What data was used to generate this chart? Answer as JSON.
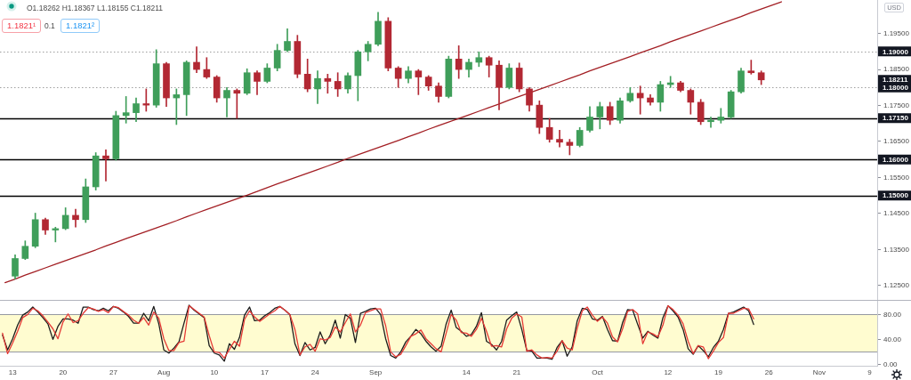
{
  "chart_data": [
    {
      "type": "candlestick",
      "categories": [
        null,
        null,
        null,
        null,
        null,
        null,
        null,
        null,
        null,
        null,
        null,
        null,
        null,
        null,
        null,
        null,
        null,
        null,
        null,
        null,
        null,
        null,
        null,
        null,
        null,
        null,
        null,
        null,
        null,
        null,
        null,
        null,
        null,
        null,
        null,
        null,
        null,
        null,
        null,
        null,
        null,
        null,
        null,
        null,
        null,
        null,
        null,
        null,
        null,
        null,
        null,
        null,
        null,
        null,
        null,
        null,
        null,
        null,
        null,
        null,
        null,
        null,
        null,
        null,
        null,
        null,
        null,
        null,
        null,
        null,
        null,
        null,
        null,
        null,
        null,
        null,
        null,
        null,
        null,
        null,
        null,
        null,
        null,
        null,
        null,
        null,
        null
      ],
      "ohlc": [
        null,
        [
          1.1276,
          1.1335,
          1.1268,
          1.1325
        ],
        [
          1.1325,
          1.1374,
          1.1322,
          1.1359
        ],
        [
          1.1359,
          1.1451,
          1.1355,
          1.1433
        ],
        [
          1.1433,
          1.1437,
          1.1392,
          1.1404
        ],
        [
          1.1404,
          1.1412,
          1.1371,
          1.1408
        ],
        [
          1.1408,
          1.1466,
          1.1405,
          1.1445
        ],
        [
          1.1445,
          1.1462,
          1.1412,
          1.1433
        ],
        [
          1.1433,
          1.1546,
          1.1425,
          1.1524
        ],
        [
          1.1524,
          1.1619,
          1.1515,
          1.161
        ],
        [
          1.161,
          1.1627,
          1.154,
          1.1602
        ],
        [
          1.1602,
          1.1734,
          1.1598,
          1.1722
        ],
        [
          1.1722,
          1.1775,
          1.1701,
          1.173
        ],
        [
          1.173,
          1.1771,
          1.1705,
          1.1755
        ],
        [
          1.1755,
          1.1796,
          1.1734,
          1.1751
        ],
        [
          1.1751,
          1.1905,
          1.1745,
          1.1866
        ],
        [
          1.1866,
          1.187,
          1.1747,
          1.1771
        ],
        [
          1.1771,
          1.1796,
          1.1697,
          1.178
        ],
        [
          1.178,
          1.1874,
          1.1722,
          1.187
        ],
        [
          1.187,
          1.1913,
          1.1841,
          1.185
        ],
        [
          1.185,
          1.1883,
          1.1825,
          1.1829
        ],
        [
          1.1829,
          1.1833,
          1.1759,
          1.1771
        ],
        [
          1.1771,
          1.18,
          1.1718,
          1.1792
        ],
        [
          1.1792,
          1.1796,
          1.1714,
          1.1784
        ],
        [
          1.1784,
          1.1852,
          1.178,
          1.1841
        ],
        [
          1.1841,
          1.1846,
          1.178,
          1.1817
        ],
        [
          1.1817,
          1.1866,
          1.1813,
          1.1854
        ],
        [
          1.1854,
          1.192,
          1.1846,
          1.1903
        ],
        [
          1.1903,
          1.1963,
          1.1899,
          1.1928
        ],
        [
          1.1928,
          1.1945,
          1.1827,
          1.1837
        ],
        [
          1.1837,
          1.1879,
          1.1788,
          1.1796
        ],
        [
          1.1796,
          1.1846,
          1.1755,
          1.1825
        ],
        [
          1.1825,
          1.1837,
          1.1784,
          1.1817
        ],
        [
          1.1817,
          1.1841,
          1.1775,
          1.1796
        ],
        [
          1.1796,
          1.1841,
          1.1784,
          1.1833
        ],
        [
          1.1833,
          1.1903,
          1.1763,
          1.1899
        ],
        [
          1.1899,
          1.1928,
          1.1874,
          1.192
        ],
        [
          1.192,
          1.2009,
          1.1916,
          1.1984
        ],
        [
          1.1984,
          1.1994,
          1.1846,
          1.1854
        ],
        [
          1.1854,
          1.1858,
          1.18,
          1.1825
        ],
        [
          1.1825,
          1.1858,
          1.1813,
          1.1846
        ],
        [
          1.1846,
          1.185,
          1.178,
          1.1829
        ],
        [
          1.1829,
          1.1833,
          1.1792,
          1.1804
        ],
        [
          1.1804,
          1.1813,
          1.1759,
          1.1775
        ],
        [
          1.1775,
          1.1887,
          1.1771,
          1.1879
        ],
        [
          1.1879,
          1.1916,
          1.1825,
          1.185
        ],
        [
          1.185,
          1.1879,
          1.1829,
          1.187
        ],
        [
          1.187,
          1.1899,
          1.1858,
          1.1883
        ],
        [
          1.1883,
          1.1887,
          1.1829,
          1.1862
        ],
        [
          1.1862,
          1.1874,
          1.1738,
          1.18
        ],
        [
          1.18,
          1.1866,
          1.1796,
          1.1854
        ],
        [
          1.1854,
          1.1868,
          1.1788,
          1.1796
        ],
        [
          1.1796,
          1.18,
          1.1734,
          1.1751
        ],
        [
          1.1751,
          1.1763,
          1.1672,
          1.1689
        ],
        [
          1.1689,
          1.1714,
          1.1648,
          1.1656
        ],
        [
          1.1656,
          1.1681,
          1.1635,
          1.1648
        ],
        [
          1.1648,
          1.1656,
          1.1613,
          1.1639
        ],
        [
          1.1639,
          1.1689,
          1.1635,
          1.1681
        ],
        [
          1.1681,
          1.1747,
          1.1676,
          1.1718
        ],
        [
          1.1718,
          1.1759,
          1.1685,
          1.1747
        ],
        [
          1.1747,
          1.1759,
          1.1697,
          1.1709
        ],
        [
          1.1709,
          1.1771,
          1.1701,
          1.1763
        ],
        [
          1.1763,
          1.18,
          1.1759,
          1.1784
        ],
        [
          1.1784,
          1.1804,
          1.1726,
          1.1771
        ],
        [
          1.1771,
          1.178,
          1.1751,
          1.1759
        ],
        [
          1.1759,
          1.1817,
          1.1734,
          1.1808
        ],
        [
          1.1808,
          1.1831,
          1.18,
          1.1813
        ],
        [
          1.1813,
          1.1817,
          1.1788,
          1.1792
        ],
        [
          1.1792,
          1.1796,
          1.1726,
          1.1759
        ],
        [
          1.1759,
          1.1767,
          1.1697,
          1.1705
        ],
        [
          1.1705,
          1.1718,
          1.1689,
          1.1709
        ],
        [
          1.1709,
          1.1742,
          1.1701,
          1.1718
        ],
        [
          1.1718,
          1.1792,
          1.1714,
          1.1788
        ],
        [
          1.1788,
          1.1854,
          1.1784,
          1.1846
        ],
        [
          1.1846,
          1.1876,
          1.1837,
          1.1841
        ],
        [
          1.1841,
          1.1846,
          1.1808,
          1.18211
        ],
        null,
        null,
        null,
        null,
        null,
        null,
        null,
        null,
        null,
        null,
        null
      ],
      "colors": [
        null,
        "#3f9e5a",
        "#3f9e5a",
        "#3f9e5a",
        "#b22833",
        "#3f9e5a",
        "#3f9e5a",
        "#b22833",
        "#3f9e5a",
        "#3f9e5a",
        "#b22833",
        "#3f9e5a",
        "#3f9e5a",
        "#3f9e5a",
        "#b22833",
        "#3f9e5a",
        "#b22833",
        "#3f9e5a",
        "#3f9e5a",
        "#b22833",
        "#b22833",
        "#b22833",
        "#3f9e5a",
        "#b22833",
        "#3f9e5a",
        "#b22833",
        "#3f9e5a",
        "#3f9e5a",
        "#3f9e5a",
        "#b22833",
        "#b22833",
        "#3f9e5a",
        "#b22833",
        "#b22833",
        "#3f9e5a",
        "#3f9e5a",
        "#3f9e5a",
        "#3f9e5a",
        "#b22833",
        "#b22833",
        "#3f9e5a",
        "#b22833",
        "#b22833",
        "#b22833",
        "#3f9e5a",
        "#b22833",
        "#3f9e5a",
        "#3f9e5a",
        "#b22833",
        "#b22833",
        "#3f9e5a",
        "#b22833",
        "#b22833",
        "#b22833",
        "#b22833",
        "#b22833",
        "#b22833",
        "#3f9e5a",
        "#3f9e5a",
        "#3f9e5a",
        "#b22833",
        "#3f9e5a",
        "#3f9e5a",
        "#b22833",
        "#b22833",
        "#3f9e5a",
        "#3f9e5a",
        "#b22833",
        "#b22833",
        "#b22833",
        "#3f9e5a",
        "#3f9e5a",
        "#3f9e5a",
        "#3f9e5a",
        "#b22833",
        "#b22833",
        null,
        null,
        null,
        null,
        null,
        null,
        null,
        null,
        null,
        null,
        null
      ],
      "series": [
        {
          "type": "line",
          "color": "#a31f24",
          "values": [
            1.1258,
            1.1268,
            1.1279,
            1.1289,
            1.1299,
            1.1309,
            1.1319,
            1.1329,
            1.1339,
            1.1349,
            1.136,
            1.137,
            1.138,
            1.139,
            1.14,
            1.141,
            1.142,
            1.143,
            1.1441,
            1.1451,
            1.1461,
            1.1471,
            1.1481,
            1.1491,
            1.1501,
            1.1511,
            1.1522,
            1.1532,
            1.1542,
            1.1552,
            1.1562,
            1.1572,
            1.1582,
            1.1592,
            1.1603,
            1.1613,
            1.1623,
            1.1633,
            1.1643,
            1.1653,
            1.1663,
            1.1673,
            1.1684,
            1.1694,
            1.1704,
            1.1714,
            1.1724,
            1.1734,
            1.1744,
            1.1754,
            1.1765,
            1.1775,
            1.1785,
            1.1795,
            1.1805,
            1.1815,
            1.1825,
            1.1835,
            1.1846,
            1.1856,
            1.1866,
            1.1876,
            1.1886,
            1.1896,
            1.1906,
            1.1916,
            1.1927,
            1.1937,
            1.1947,
            1.1957,
            1.1967,
            1.1977,
            1.1987,
            1.1997,
            1.2008,
            1.2018,
            1.2028,
            1.2038,
            null,
            null,
            null,
            null,
            null,
            null,
            null,
            null,
            null
          ]
        }
      ],
      "ylim": [
        1.121,
        1.2043
      ],
      "yticks": [
        {
          "value": 1.125,
          "label": "1.12500"
        },
        {
          "value": 1.135,
          "label": "1.13500"
        },
        {
          "value": 1.145,
          "label": "1.14500"
        },
        {
          "value": 1.155,
          "label": "1.15500"
        },
        {
          "value": 1.165,
          "label": "1.16500"
        },
        {
          "value": 1.175,
          "label": "1.17500"
        },
        {
          "value": 1.185,
          "label": "1.18500"
        },
        {
          "value": 1.195,
          "label": "1.19500"
        }
      ],
      "ref_lines": [
        {
          "axis": "y",
          "value": 1.19,
          "label": "1.19000",
          "color": "#9e9e9e",
          "line_style": "dotted"
        },
        {
          "axis": "y",
          "value": 1.18,
          "label": "1.18000",
          "color": "#9e9e9e",
          "line_style": "dotted"
        },
        {
          "axis": "y",
          "value": 1.1715,
          "label": "1.17150",
          "color": "#000000"
        },
        {
          "axis": "y",
          "value": 1.16,
          "label": "1.16000",
          "color": "#000000"
        },
        {
          "axis": "y",
          "value": 1.15,
          "label": "1.15000",
          "color": "#000000"
        }
      ],
      "annotations": [
        "O1.18262 H1.18367 L1.18155 C1.18211",
        "1.1821¹",
        "0.1",
        "1.1821²",
        "USD",
        "1.18211"
      ]
    },
    {
      "type": "line",
      "categories": [
        null,
        null,
        "13",
        null,
        null,
        null,
        null,
        null,
        null,
        null,
        null,
        null,
        "20",
        null,
        null,
        null,
        null,
        null,
        null,
        null,
        null,
        null,
        "27",
        null,
        null,
        null,
        null,
        null,
        null,
        null,
        null,
        null,
        "Aug",
        null,
        null,
        null,
        null,
        null,
        null,
        null,
        null,
        null,
        "10",
        null,
        null,
        null,
        null,
        null,
        null,
        null,
        null,
        null,
        "17",
        null,
        null,
        null,
        null,
        null,
        null,
        null,
        null,
        null,
        "24",
        null,
        null,
        null,
        null,
        null,
        null,
        null,
        null,
        null,
        null,
        null,
        "Sep",
        null,
        null,
        null,
        null,
        null,
        null,
        null,
        null,
        null,
        null,
        null,
        null,
        null,
        null,
        null,
        null,
        null,
        "14",
        null,
        null,
        null,
        null,
        null,
        null,
        null,
        null,
        null,
        "21",
        null,
        null,
        null,
        null,
        null,
        null,
        null,
        null,
        null,
        null,
        null,
        null,
        null,
        null,
        null,
        "Oct",
        null,
        null,
        null,
        null,
        null,
        null,
        null,
        null,
        null,
        null,
        null,
        null,
        null,
        "12",
        null,
        null,
        null,
        null,
        null,
        null,
        null,
        null,
        null,
        "19",
        null,
        null,
        null,
        null,
        null,
        null,
        null,
        null,
        null,
        "26",
        null,
        null,
        null,
        null,
        null,
        null,
        null,
        null,
        null,
        "Nov",
        null,
        null,
        null,
        null,
        null,
        null,
        null,
        null,
        null,
        "9",
        null
      ],
      "series": [
        {
          "color": "#1b1b1b",
          "values": [
            47,
            23,
            41,
            63,
            79,
            84,
            92,
            84,
            75,
            65,
            40,
            61,
            73,
            73,
            71,
            66,
            92,
            92,
            88,
            86,
            90,
            86,
            93,
            90,
            84,
            77,
            66,
            66,
            82,
            70,
            93,
            65,
            23,
            18,
            26,
            36,
            66,
            95,
            87,
            81,
            75,
            30,
            18,
            15,
            5,
            33,
            24,
            43,
            79,
            92,
            70,
            71,
            78,
            83,
            90,
            93,
            87,
            80,
            33,
            14,
            35,
            23,
            27,
            52,
            33,
            47,
            71,
            42,
            80,
            74,
            35,
            82,
            85,
            89,
            90,
            80,
            41,
            14,
            10,
            20,
            36,
            45,
            56,
            49,
            37,
            28,
            21,
            29,
            65,
            87,
            59,
            53,
            45,
            48,
            61,
            83,
            37,
            32,
            23,
            37,
            71,
            78,
            84,
            56,
            22,
            21,
            10,
            10,
            10,
            8,
            27,
            38,
            13,
            28,
            70,
            90,
            88,
            73,
            71,
            77,
            56,
            38,
            37,
            67,
            88,
            87,
            64,
            42,
            53,
            47,
            42,
            75,
            94,
            86,
            76,
            56,
            25,
            16,
            30,
            22,
            12,
            27,
            37,
            56,
            82,
            84,
            88,
            92,
            86,
            64,
            null,
            null,
            null,
            null,
            null,
            null,
            null,
            null,
            null,
            null,
            null,
            null,
            null,
            null,
            null,
            null,
            null,
            null,
            null,
            null,
            null,
            null,
            null,
            null
          ]
        },
        {
          "color": "#e53935",
          "values": [
            50,
            17,
            34,
            53,
            75,
            80,
            90,
            86,
            78,
            68,
            57,
            41,
            68,
            81,
            67,
            70,
            82,
            91,
            89,
            85,
            88,
            83,
            93,
            91,
            85,
            79,
            71,
            66,
            75,
            63,
            84,
            74,
            41,
            22,
            22,
            35,
            37,
            94,
            88,
            82,
            76,
            46,
            20,
            19,
            10,
            24,
            37,
            29,
            72,
            86,
            76,
            69,
            75,
            81,
            86,
            93,
            87,
            80,
            56,
            15,
            28,
            32,
            21,
            41,
            39,
            43,
            60,
            52,
            67,
            81,
            52,
            63,
            83,
            86,
            89,
            89,
            62,
            20,
            12,
            16,
            30,
            45,
            49,
            55,
            41,
            33,
            25,
            20,
            50,
            80,
            71,
            51,
            50,
            45,
            56,
            74,
            53,
            29,
            30,
            28,
            57,
            74,
            81,
            76,
            21,
            23,
            15,
            10,
            11,
            10,
            21,
            38,
            26,
            23,
            58,
            86,
            92,
            79,
            69,
            76,
            66,
            44,
            36,
            57,
            85,
            88,
            81,
            33,
            52,
            49,
            44,
            63,
            94,
            88,
            79,
            65,
            37,
            17,
            30,
            28,
            9,
            21,
            35,
            43,
            82,
            82,
            86,
            90,
            89,
            73,
            null,
            null,
            null,
            null,
            null,
            null,
            null,
            null,
            null,
            null,
            null,
            null,
            null,
            null,
            null,
            null,
            null,
            null,
            null,
            null,
            null,
            null,
            null,
            null
          ]
        }
      ],
      "ylim": [
        -2.4,
        103.5
      ],
      "yticks": [
        {
          "value": 0,
          "label": "0.00"
        },
        {
          "value": 40,
          "label": "40.00"
        },
        {
          "value": 80,
          "label": "80.00"
        }
      ],
      "bands": [
        {
          "axis": "y",
          "from": 20,
          "to": 80,
          "color": "#fffcd0"
        }
      ]
    }
  ]
}
